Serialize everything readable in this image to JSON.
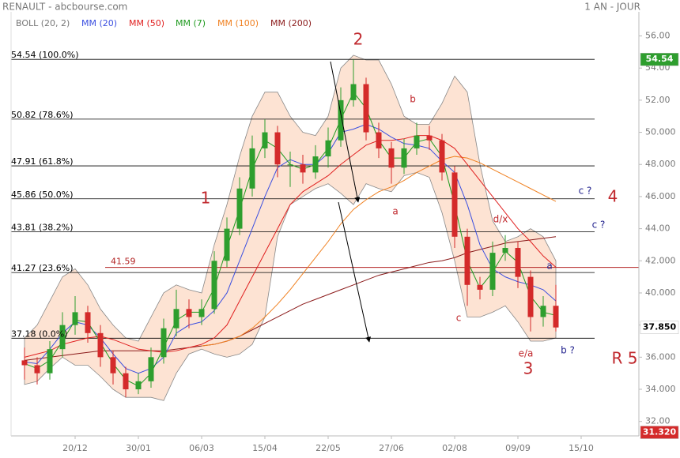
{
  "chart_data": {
    "type": "candlestick",
    "title": "RENAULT - abcbourse.com",
    "period": "1 AN - JOUR",
    "categories": [
      null,
      null,
      null,
      null,
      "20/12",
      null,
      null,
      null,
      null,
      "30/01",
      null,
      null,
      null,
      null,
      "06/03",
      null,
      null,
      null,
      null,
      "15/04",
      null,
      null,
      null,
      null,
      "22/05",
      null,
      null,
      null,
      null,
      "27/06",
      null,
      null,
      null,
      null,
      "02/08",
      null,
      null,
      null,
      null,
      "09/09",
      null,
      null,
      null,
      null,
      "15/10"
    ],
    "candles": {
      "up_color": "#2e9e2e",
      "down_color": "#d42a2a",
      "open": [
        35.8,
        35.5,
        35.0,
        36.5,
        38.0,
        38.8,
        37.5,
        36.0,
        35.0,
        34.0,
        34.5,
        36.0,
        37.8,
        39.0,
        38.5,
        39.0,
        42.0,
        44.0,
        46.5,
        49.0,
        50.0,
        48.0,
        48.0,
        47.5,
        48.5,
        49.5,
        52.0,
        53.0,
        50.0,
        49.0,
        47.8,
        49.0,
        49.8,
        49.5,
        47.5,
        43.5,
        40.5,
        40.2,
        42.5,
        42.8,
        41.0,
        38.5,
        39.2,
        null,
        null
      ],
      "high": [
        36.6,
        36.0,
        37.0,
        38.8,
        39.8,
        39.2,
        38.0,
        36.4,
        35.4,
        35.0,
        36.6,
        38.4,
        40.2,
        39.6,
        39.6,
        42.6,
        44.7,
        47.2,
        49.8,
        50.8,
        50.4,
        48.8,
        48.6,
        49.2,
        50.3,
        52.8,
        54.54,
        53.4,
        50.6,
        49.4,
        49.6,
        50.6,
        50.4,
        49.9,
        47.9,
        44.0,
        41.0,
        43.2,
        43.6,
        43.2,
        41.4,
        39.8,
        40.5,
        null,
        null
      ],
      "low": [
        34.6,
        34.3,
        34.6,
        36.0,
        37.4,
        36.9,
        35.4,
        34.3,
        33.5,
        33.7,
        34.1,
        35.6,
        37.3,
        37.8,
        38.0,
        38.7,
        41.6,
        43.6,
        46.0,
        48.4,
        47.2,
        46.6,
        46.8,
        47.1,
        47.8,
        49.1,
        51.6,
        49.5,
        48.4,
        46.8,
        47.4,
        48.6,
        48.9,
        47.0,
        42.8,
        39.2,
        39.6,
        39.8,
        42.0,
        40.3,
        37.6,
        37.9,
        37.6,
        null,
        null
      ],
      "close": [
        35.5,
        35.0,
        36.5,
        38.0,
        38.8,
        37.5,
        36.0,
        35.0,
        34.0,
        34.5,
        36.0,
        37.8,
        39.0,
        38.5,
        39.0,
        42.0,
        44.0,
        46.5,
        49.0,
        50.0,
        48.0,
        48.0,
        47.5,
        48.5,
        49.5,
        52.0,
        53.0,
        50.0,
        49.0,
        47.8,
        49.0,
        49.8,
        49.5,
        47.5,
        43.5,
        40.5,
        40.2,
        42.5,
        42.8,
        41.0,
        38.5,
        39.2,
        37.85,
        null,
        null
      ]
    },
    "bollinger": {
      "name": "BOLL (20, 2)",
      "color": "#888888",
      "fill": "#fde3d3",
      "upper": [
        37.2,
        38.0,
        39.5,
        41.0,
        41.5,
        40.5,
        39.0,
        38.0,
        37.2,
        37.0,
        38.5,
        40.0,
        40.5,
        40.2,
        40.0,
        43.0,
        45.5,
        48.5,
        51.0,
        52.5,
        52.5,
        51.0,
        50.0,
        49.8,
        51.0,
        54.0,
        54.8,
        54.5,
        54.5,
        53.0,
        51.0,
        50.5,
        50.5,
        51.8,
        53.5,
        52.5,
        48.0,
        44.5,
        43.2,
        43.5,
        44.0,
        43.5,
        42.0,
        null,
        null
      ],
      "lower": [
        34.3,
        34.5,
        35.3,
        36.0,
        35.5,
        35.5,
        34.8,
        34.0,
        33.5,
        33.5,
        33.5,
        33.3,
        35.0,
        36.2,
        36.5,
        36.2,
        36.0,
        36.2,
        36.8,
        38.5,
        43.5,
        45.5,
        46.0,
        46.5,
        46.8,
        46.2,
        45.5,
        46.8,
        46.5,
        46.3,
        47.3,
        47.5,
        47.2,
        45.0,
        42.0,
        38.5,
        38.5,
        38.8,
        39.2,
        38.2,
        37.0,
        37.0,
        37.2,
        null,
        null
      ]
    },
    "series": [
      {
        "name": "MM (20)",
        "color": "#3b4fe0",
        "values": [
          35.7,
          35.6,
          36.5,
          37.5,
          38.2,
          38.0,
          37.2,
          36.2,
          35.3,
          35.0,
          35.3,
          36.0,
          37.5,
          38.0,
          38.2,
          38.9,
          40.0,
          42.0,
          44.0,
          46.0,
          47.8,
          48.3,
          48.0,
          48.0,
          48.7,
          50.0,
          50.2,
          50.5,
          50.2,
          49.7,
          49.3,
          49.2,
          49.0,
          48.2,
          47.5,
          45.5,
          43.0,
          41.5,
          41.0,
          40.7,
          40.5,
          40.2,
          39.5,
          null,
          null
        ]
      },
      {
        "name": "MM (50)",
        "color": "#e02020",
        "values": [
          36.0,
          36.2,
          36.4,
          36.8,
          37.0,
          37.2,
          37.3,
          37.1,
          36.8,
          36.5,
          36.4,
          36.3,
          36.4,
          36.6,
          36.8,
          37.2,
          38.0,
          39.5,
          41.0,
          42.5,
          44.0,
          45.5,
          46.3,
          46.8,
          47.3,
          48.0,
          48.6,
          49.2,
          49.5,
          49.5,
          49.6,
          49.8,
          49.8,
          49.5,
          49.0,
          48.0,
          47.0,
          46.0,
          45.0,
          44.0,
          43.2,
          42.3,
          41.6,
          null,
          null
        ]
      },
      {
        "name": "MM (7)",
        "color": "#1f9a1f",
        "values": [
          35.6,
          35.3,
          35.8,
          37,
          38.3,
          38.2,
          36.9,
          35.6,
          34.6,
          34.2,
          35,
          36.6,
          38.3,
          38.8,
          38.8,
          40.3,
          42.8,
          45.2,
          47.7,
          49.5,
          49,
          48,
          47.7,
          48,
          49,
          50.8,
          52.5,
          51.5,
          49.5,
          48.4,
          48.4,
          49.4,
          49.6,
          48.5,
          45.5,
          42,
          40.3,
          41.3,
          42.6,
          41.9,
          39.8,
          38.8,
          38.6,
          null,
          null
        ]
      },
      {
        "name": "MM (100)",
        "color": "#f08020",
        "values": [
          null,
          null,
          null,
          null,
          null,
          null,
          null,
          null,
          null,
          null,
          null,
          null,
          null,
          null,
          36.7,
          36.8,
          37.0,
          37.3,
          37.8,
          38.5,
          39.3,
          40.2,
          41.2,
          42.2,
          43.2,
          44.3,
          45.2,
          45.8,
          46.3,
          46.6,
          47,
          47.5,
          47.9,
          48.3,
          48.5,
          48.4,
          48.1,
          47.7,
          47.3,
          46.9,
          46.5,
          46.1,
          45.7,
          null,
          null
        ]
      },
      {
        "name": "MM (200)",
        "color": "#8b1a1a",
        "values": [
          35.8,
          35.9,
          36.0,
          36.1,
          36.2,
          36.3,
          36.4,
          36.4,
          36.4,
          36.4,
          36.4,
          36.4,
          36.5,
          36.6,
          36.7,
          36.8,
          37.0,
          37.3,
          37.7,
          38.1,
          38.5,
          38.9,
          39.3,
          39.6,
          39.9,
          40.2,
          40.5,
          40.8,
          41.1,
          41.3,
          41.5,
          41.7,
          41.9,
          42.0,
          42.2,
          42.5,
          42.7,
          42.9,
          43.1,
          43.2,
          43.3,
          43.4,
          43.5,
          null,
          null
        ]
      }
    ],
    "ylim": [
      31.1,
      57.5
    ],
    "yticks": [
      {
        "value": 56,
        "label": "56.00"
      },
      {
        "value": 54,
        "label": "54.00"
      },
      {
        "value": 52,
        "label": "52.00"
      },
      {
        "value": 50,
        "label": "50.000"
      },
      {
        "value": 48,
        "label": "48.000"
      },
      {
        "value": 46,
        "label": "46.000"
      },
      {
        "value": 44,
        "label": "44.00"
      },
      {
        "value": 42,
        "label": "42.000"
      },
      {
        "value": 40,
        "label": "40.000"
      },
      {
        "value": 38,
        "label": "38.000"
      },
      {
        "value": 36,
        "label": "36.000"
      },
      {
        "value": 34,
        "label": "34.000"
      },
      {
        "value": 32,
        "label": "32.00"
      }
    ],
    "fib_levels": [
      {
        "value": 54.54,
        "label": "54.54  (100.0%)"
      },
      {
        "value": 50.82,
        "label": "50.82  (78.6%)"
      },
      {
        "value": 47.91,
        "label": "47.91  (61.8%)"
      },
      {
        "value": 45.86,
        "label": "45.86  (50.0%)"
      },
      {
        "value": 43.81,
        "label": "43.81  (38.2%)"
      },
      {
        "value": 41.27,
        "label": "41.27  (23.6%)"
      },
      {
        "value": 37.18,
        "label": "37.18  (0.0%)"
      }
    ],
    "hline": {
      "value": 41.59,
      "label": "41.59",
      "color": "#b22222"
    },
    "price_badges": [
      {
        "value": 54.54,
        "label": "54.54",
        "color": "#2e9e2e",
        "text_color": "#ffffff"
      },
      {
        "value": 37.85,
        "label": "37.850",
        "color": "#ffffff",
        "text_color": "#000000"
      },
      {
        "value": 31.32,
        "label": "31.320",
        "color": "#d42a2a",
        "text_color": "#ffffff"
      }
    ],
    "annotations": [
      {
        "text": "2",
        "color": "#c0282d"
      },
      {
        "text": "1",
        "color": "#c0282d"
      },
      {
        "text": "4",
        "color": "#c0282d"
      },
      {
        "text": "3",
        "color": "#c0282d"
      },
      {
        "text": "R 5",
        "color": "#c0282d"
      },
      {
        "text": "b",
        "color": "#c0282d"
      },
      {
        "text": "a",
        "color": "#c0282d"
      },
      {
        "text": "c",
        "color": "#c0282d"
      },
      {
        "text": "d/x",
        "color": "#c0282d"
      },
      {
        "text": "e/a",
        "color": "#c0282d"
      },
      {
        "text": "a",
        "color": "#23238e"
      },
      {
        "text": "c ?",
        "color": "#23238e"
      },
      {
        "text": "c ?",
        "color": "#23238e"
      },
      {
        "text": "b ?",
        "color": "#23238e"
      }
    ],
    "grid": false
  }
}
